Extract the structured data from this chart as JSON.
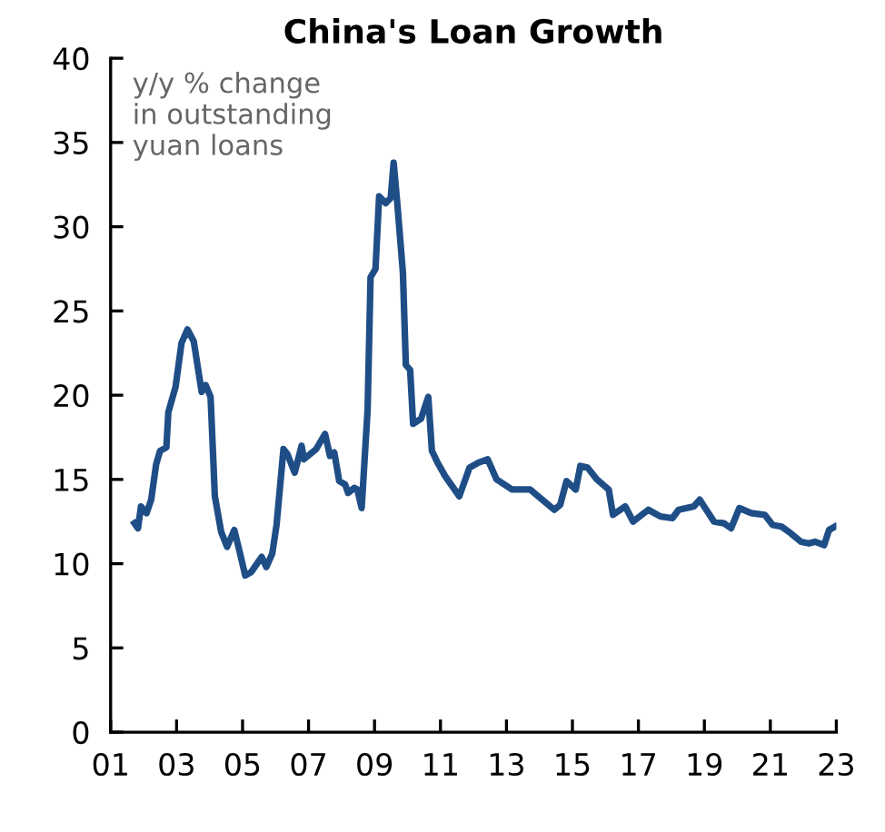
{
  "chart_data": {
    "type": "line",
    "title": "China's Loan Growth",
    "annotations": [
      "y/y % change\nin outstanding\nyuan loans"
    ],
    "x": [
      2001.72,
      2001.83,
      2001.92,
      2002.09,
      2002.23,
      2002.38,
      2002.5,
      2002.69,
      2002.75,
      2002.97,
      2003.15,
      2003.33,
      2003.52,
      2003.76,
      2003.88,
      2004.03,
      2004.16,
      2004.35,
      2004.53,
      2004.75,
      2004.9,
      2005.08,
      2005.26,
      2005.58,
      2005.72,
      2005.9,
      2006.03,
      2006.24,
      2006.36,
      2006.58,
      2006.79,
      2006.86,
      2007.23,
      2007.5,
      2007.65,
      2007.78,
      2007.93,
      2008.11,
      2008.2,
      2008.39,
      2008.48,
      2008.61,
      2008.79,
      2008.88,
      2009.03,
      2009.14,
      2009.34,
      2009.49,
      2009.58,
      2009.69,
      2009.86,
      2009.95,
      2010.08,
      2010.17,
      2010.41,
      2010.63,
      2010.74,
      2010.91,
      2011.14,
      2011.57,
      2011.88,
      2012.15,
      2012.43,
      2012.7,
      2013.17,
      2013.72,
      2014.08,
      2014.45,
      2014.63,
      2014.82,
      2015.1,
      2015.24,
      2015.46,
      2015.74,
      2016.1,
      2016.23,
      2016.6,
      2016.84,
      2017.3,
      2017.67,
      2018.03,
      2018.22,
      2018.68,
      2018.86,
      2019.29,
      2019.59,
      2019.81,
      2020.06,
      2020.42,
      2020.83,
      2021.07,
      2021.34,
      2021.62,
      2021.93,
      2022.17,
      2022.35,
      2022.63,
      2022.78,
      2022.96
    ],
    "series": [
      {
        "color": "#1f4e87",
        "values": [
          12.4,
          12.1,
          13.4,
          13.0,
          13.8,
          15.9,
          16.7,
          16.9,
          19.0,
          20.5,
          23.1,
          23.9,
          23.2,
          20.2,
          20.6,
          19.9,
          14.0,
          11.9,
          11.0,
          12.0,
          10.8,
          9.3,
          9.5,
          10.4,
          9.8,
          10.6,
          12.3,
          16.8,
          16.5,
          15.4,
          17.0,
          16.2,
          16.8,
          17.7,
          16.4,
          16.6,
          14.9,
          14.7,
          14.2,
          14.5,
          14.4,
          13.3,
          19.1,
          27.0,
          27.5,
          31.8,
          31.4,
          31.7,
          33.8,
          31.4,
          27.3,
          21.8,
          21.5,
          18.3,
          18.6,
          19.9,
          16.7,
          16.0,
          15.2,
          14.0,
          15.7,
          16.0,
          16.2,
          15.0,
          14.4,
          14.4,
          13.8,
          13.2,
          13.5,
          14.9,
          14.4,
          15.8,
          15.7,
          15.0,
          14.4,
          12.9,
          13.4,
          12.5,
          13.2,
          12.8,
          12.7,
          13.2,
          13.4,
          13.8,
          12.5,
          12.4,
          12.1,
          13.3,
          13.0,
          12.9,
          12.3,
          12.2,
          11.8,
          11.3,
          11.2,
          11.3,
          11.1,
          12.0,
          12.2
        ]
      }
    ],
    "xlim": [
      2001,
      2023
    ],
    "xticks": [
      {
        "value": 2001,
        "label": "01"
      },
      {
        "value": 2003,
        "label": "03"
      },
      {
        "value": 2005,
        "label": "05"
      },
      {
        "value": 2007,
        "label": "07"
      },
      {
        "value": 2009,
        "label": "09"
      },
      {
        "value": 2011,
        "label": "11"
      },
      {
        "value": 2013,
        "label": "13"
      },
      {
        "value": 2015,
        "label": "15"
      },
      {
        "value": 2017,
        "label": "17"
      },
      {
        "value": 2019,
        "label": "19"
      },
      {
        "value": 2021,
        "label": "21"
      },
      {
        "value": 2023,
        "label": "23"
      }
    ],
    "ylim": [
      0,
      40
    ],
    "yticks": [
      0,
      5,
      10,
      15,
      20,
      25,
      30,
      35,
      40
    ],
    "grid": false,
    "marker": "none",
    "line_style": "solid"
  }
}
